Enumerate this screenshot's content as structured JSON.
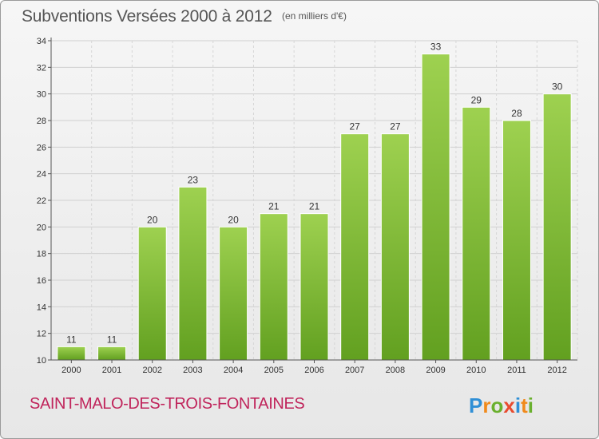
{
  "header": {
    "title": "Subventions Versées 2000 à 2012",
    "unit": "(en milliers d'€)"
  },
  "footer": {
    "city": "SAINT-MALO-DES-TROIS-FONTAINES",
    "brand": "Proxiti"
  },
  "colors": {
    "bar_light": "#9ed150",
    "bar_dark": "#62a020",
    "city_text": "#c0245b"
  },
  "chart_data": {
    "type": "bar",
    "title": "Subventions Versées 2000 à 2012",
    "subtitle": "(en milliers d'€)",
    "categories": [
      "2000",
      "2001",
      "2002",
      "2003",
      "2004",
      "2005",
      "2006",
      "2007",
      "2008",
      "2009",
      "2010",
      "2011",
      "2012"
    ],
    "values": [
      11,
      11,
      20,
      23,
      20,
      21,
      21,
      27,
      27,
      33,
      29,
      28,
      30
    ],
    "data_labels": [
      "11",
      "11",
      "20",
      "23",
      "20",
      "21",
      "21",
      "27",
      "27",
      "33",
      "29",
      "28",
      "30"
    ],
    "ylim": [
      10,
      34
    ],
    "yticks": [
      10,
      12,
      14,
      16,
      18,
      20,
      22,
      24,
      26,
      28,
      30,
      32,
      34
    ],
    "grid": true
  }
}
